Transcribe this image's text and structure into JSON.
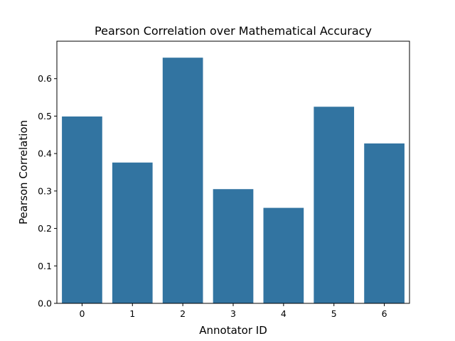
{
  "chart_data": {
    "type": "bar",
    "title": "Pearson Correlation over Mathematical Accuracy",
    "xlabel": "Annotator ID",
    "ylabel": "Pearson Correlation",
    "categories": [
      "0",
      "1",
      "2",
      "3",
      "4",
      "5",
      "6"
    ],
    "values": [
      0.499,
      0.376,
      0.656,
      0.305,
      0.255,
      0.525,
      0.427
    ],
    "ylim": [
      0,
      0.7
    ],
    "yticks": [
      "0.0",
      "0.1",
      "0.2",
      "0.3",
      "0.4",
      "0.5",
      "0.6"
    ],
    "bar_color": "#3274a1",
    "grid": false,
    "legend": "none"
  }
}
